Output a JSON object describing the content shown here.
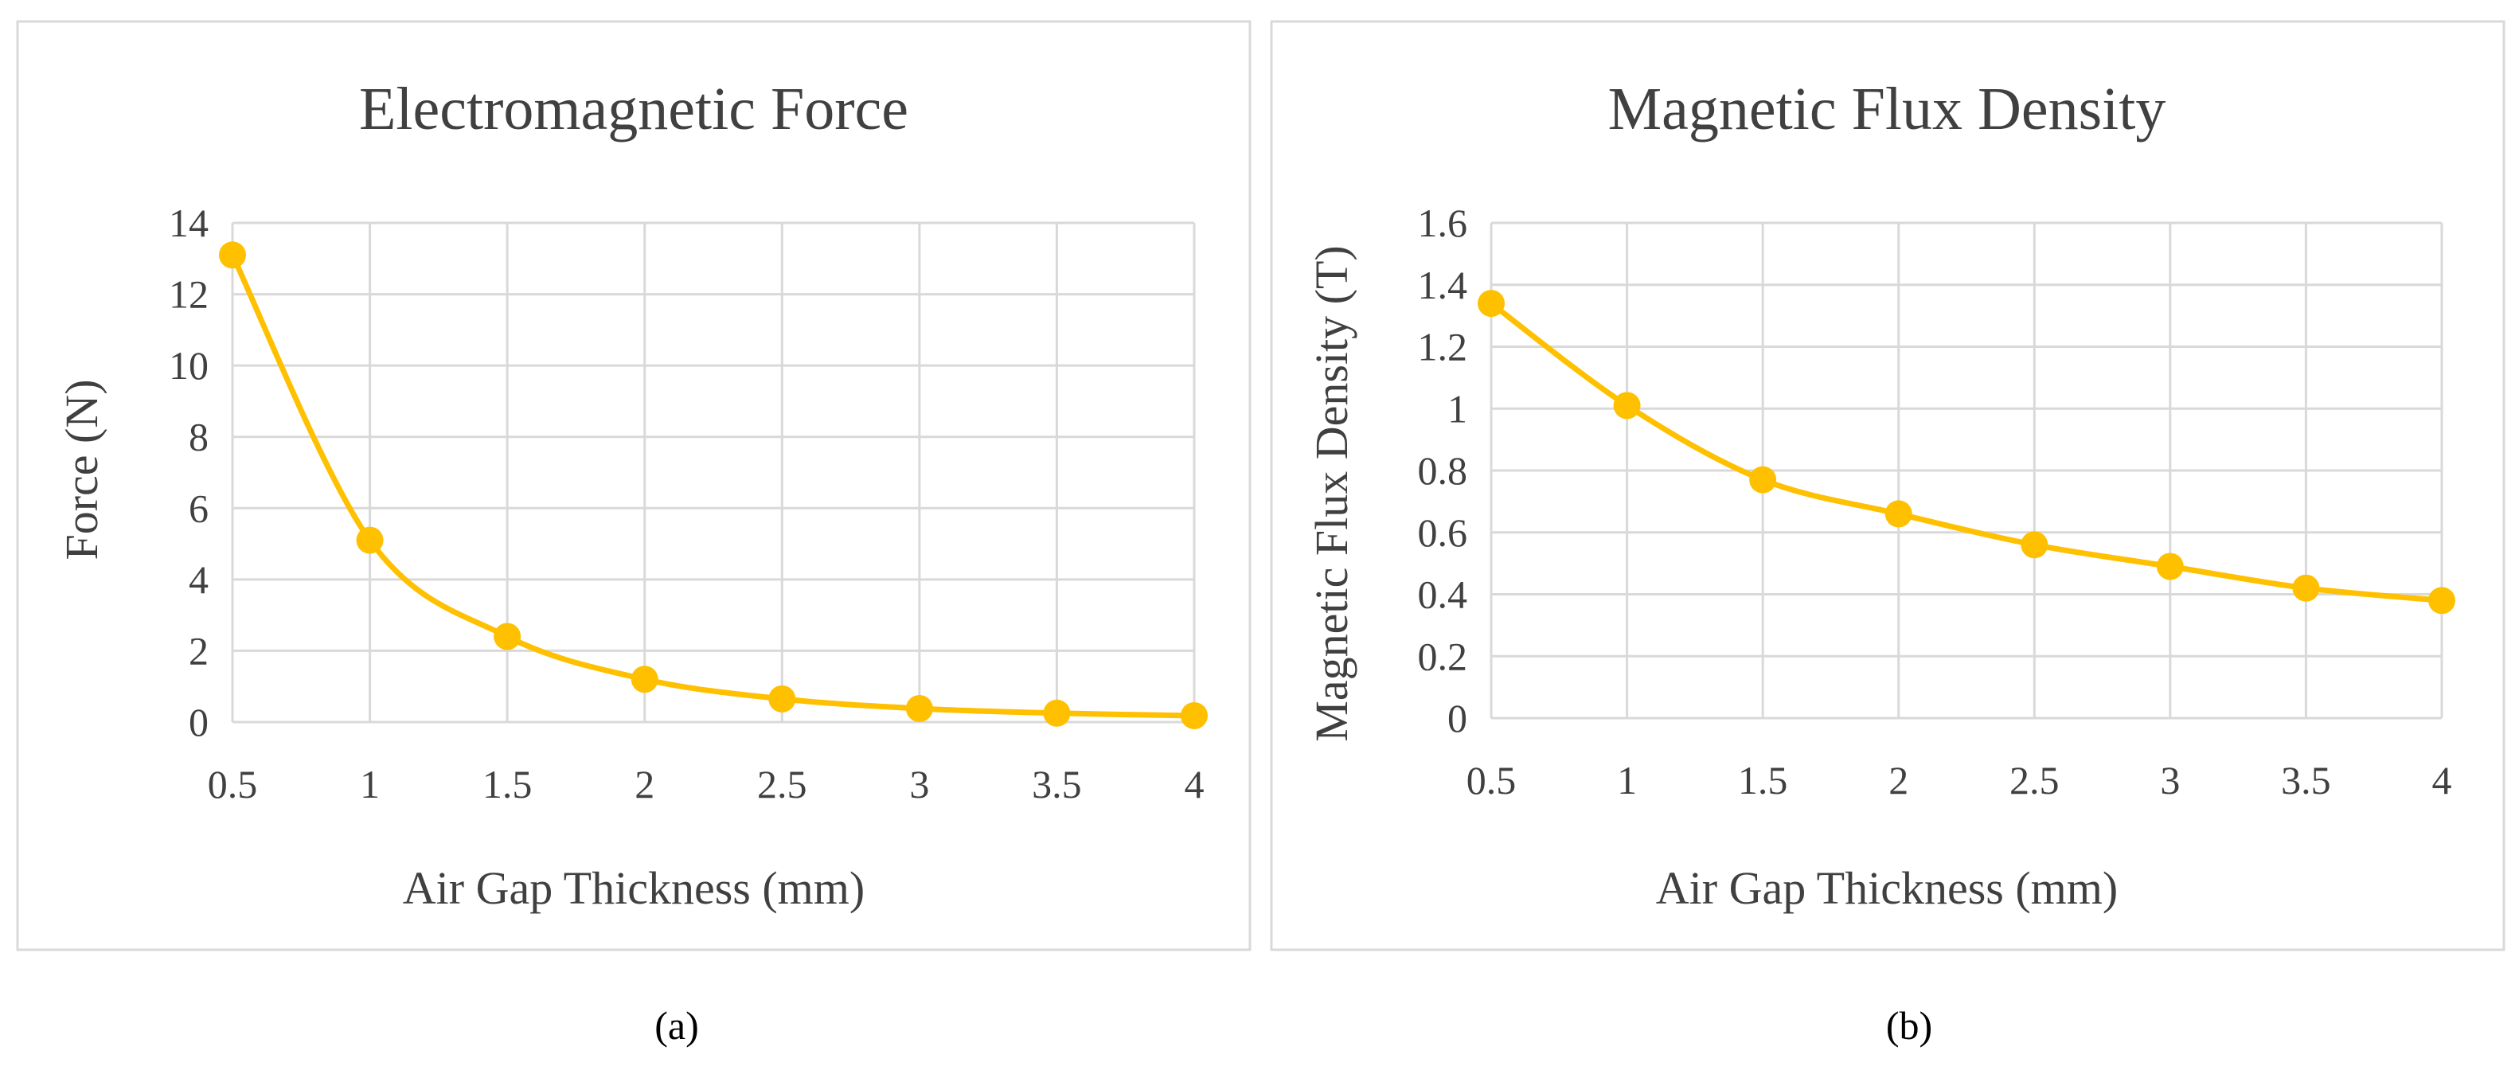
{
  "colors": {
    "series": "#ffc000",
    "grid": "#d9d9d9",
    "text": "#404040"
  },
  "chart_data": [
    {
      "type": "line",
      "title": "Electromagnetic Force",
      "xlabel": "Air Gap Thickness (mm)",
      "ylabel": "Force (N)",
      "categories": [
        "0.5",
        "1",
        "1.5",
        "2",
        "2.5",
        "3",
        "3.5",
        "4"
      ],
      "yticks": [
        "0",
        "2",
        "4",
        "6",
        "8",
        "10",
        "12",
        "14"
      ],
      "ylim": [
        0,
        14
      ],
      "grid": true,
      "smooth": true,
      "series": [
        {
          "name": "Force",
          "values": [
            13.1,
            5.1,
            2.4,
            1.2,
            0.65,
            0.38,
            0.25,
            0.18
          ]
        }
      ],
      "caption": "(a)"
    },
    {
      "type": "line",
      "title": "Magnetic Flux Density",
      "xlabel": "Air Gap Thickness (mm)",
      "ylabel": "Magnetic Flux Density (T)",
      "categories": [
        "0.5",
        "1",
        "1.5",
        "2",
        "2.5",
        "3",
        "3.5",
        "4"
      ],
      "yticks": [
        "0",
        "0.2",
        "0.4",
        "0.6",
        "0.8",
        "1",
        "1.2",
        "1.4",
        "1.6"
      ],
      "ylim": [
        0,
        1.6
      ],
      "grid": true,
      "smooth": true,
      "series": [
        {
          "name": "Magnetic Flux Density",
          "values": [
            1.34,
            1.01,
            0.77,
            0.66,
            0.56,
            0.49,
            0.42,
            0.38
          ]
        }
      ],
      "caption": "(b)"
    }
  ]
}
